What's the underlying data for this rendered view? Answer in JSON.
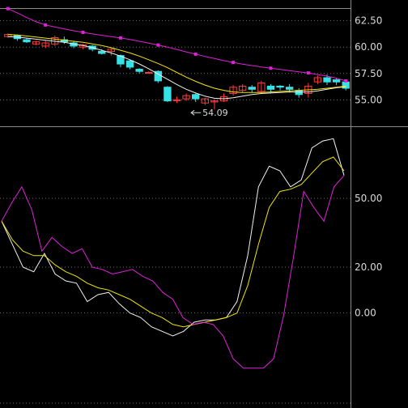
{
  "colors": {
    "background": "#000000",
    "grid": "#6e6e6e",
    "separator": "#8a8a8a",
    "up_candle": "#ff3b3b",
    "down_candle": "#37e2e6",
    "ma_white": "#f2f2f2",
    "ma_yellow": "#f2e600",
    "ma_magenta": "#e020d8",
    "text": "#d8d8d8"
  },
  "chart_data": [
    {
      "type": "candlestick",
      "panel": "price",
      "ylim": [
        52.8,
        63.7
      ],
      "yticks": [
        "62.50",
        "60.00",
        "57.50",
        "55.00"
      ],
      "annotations": [
        {
          "label": "54.09",
          "x": 19,
          "y": 54.09,
          "arrow": "left"
        }
      ],
      "candles": [
        {
          "o": 61.0,
          "c": 61.2,
          "h": 61.3,
          "l": 60.9
        },
        {
          "o": 61.1,
          "c": 60.8,
          "h": 61.2,
          "l": 60.6
        },
        {
          "o": 60.7,
          "c": 60.5,
          "h": 60.9,
          "l": 60.4
        },
        {
          "o": 60.3,
          "c": 60.5,
          "h": 60.6,
          "l": 60.2
        },
        {
          "o": 60.1,
          "c": 60.4,
          "h": 60.6,
          "l": 59.9
        },
        {
          "o": 60.3,
          "c": 60.9,
          "h": 61.1,
          "l": 60.1
        },
        {
          "o": 60.7,
          "c": 60.5,
          "h": 61.0,
          "l": 60.3
        },
        {
          "o": 60.4,
          "c": 60.1,
          "h": 60.6,
          "l": 59.9
        },
        {
          "o": 60.0,
          "c": 60.2,
          "h": 60.3,
          "l": 59.8
        },
        {
          "o": 60.1,
          "c": 59.8,
          "h": 60.2,
          "l": 59.6
        },
        {
          "o": 59.6,
          "c": 59.4,
          "h": 59.8,
          "l": 59.3
        },
        {
          "o": 59.6,
          "c": 59.8,
          "h": 59.9,
          "l": 59.2
        },
        {
          "o": 59.2,
          "c": 58.4,
          "h": 59.3,
          "l": 58.1
        },
        {
          "o": 58.7,
          "c": 58.1,
          "h": 58.8,
          "l": 57.9
        },
        {
          "o": 57.9,
          "c": 57.7,
          "h": 58.0,
          "l": 57.5
        },
        {
          "o": 57.6,
          "c": 57.6,
          "h": 57.7,
          "l": 57.5
        },
        {
          "o": 57.7,
          "c": 56.8,
          "h": 57.8,
          "l": 56.6
        },
        {
          "o": 56.2,
          "c": 54.9,
          "h": 56.3,
          "l": 54.8
        },
        {
          "o": 55.0,
          "c": 55.0,
          "h": 55.3,
          "l": 54.7
        },
        {
          "o": 55.1,
          "c": 55.4,
          "h": 55.6,
          "l": 54.9
        },
        {
          "o": 55.5,
          "c": 55.1,
          "h": 55.6,
          "l": 54.8
        },
        {
          "o": 54.7,
          "c": 55.1,
          "h": 55.2,
          "l": 54.5
        },
        {
          "o": 54.8,
          "c": 54.9,
          "h": 55.0,
          "l": 54.09
        },
        {
          "o": 54.9,
          "c": 55.3,
          "h": 55.6,
          "l": 54.8
        },
        {
          "o": 55.6,
          "c": 56.2,
          "h": 56.4,
          "l": 55.4
        },
        {
          "o": 55.9,
          "c": 56.3,
          "h": 56.5,
          "l": 55.7
        },
        {
          "o": 56.2,
          "c": 56.0,
          "h": 56.4,
          "l": 55.7
        },
        {
          "o": 55.8,
          "c": 56.6,
          "h": 56.8,
          "l": 55.6
        },
        {
          "o": 56.3,
          "c": 56.0,
          "h": 56.5,
          "l": 55.6
        },
        {
          "o": 56.3,
          "c": 56.2,
          "h": 56.4,
          "l": 55.9
        },
        {
          "o": 56.2,
          "c": 56.0,
          "h": 56.5,
          "l": 55.7
        },
        {
          "o": 55.9,
          "c": 55.5,
          "h": 56.1,
          "l": 55.2
        },
        {
          "o": 55.6,
          "c": 56.3,
          "h": 56.6,
          "l": 55.2
        },
        {
          "o": 56.7,
          "c": 57.1,
          "h": 57.3,
          "l": 56.5
        },
        {
          "o": 57.1,
          "c": 56.7,
          "h": 57.4,
          "l": 56.4
        },
        {
          "o": 56.9,
          "c": 56.7,
          "h": 57.1,
          "l": 56.4
        },
        {
          "o": 56.7,
          "c": 56.1,
          "h": 56.8,
          "l": 55.9
        }
      ],
      "series": [
        {
          "color_key": "ma_white",
          "values": [
            61.0,
            60.95,
            60.85,
            60.75,
            60.65,
            60.55,
            60.45,
            60.3,
            60.15,
            59.95,
            59.7,
            59.45,
            59.15,
            58.8,
            58.4,
            57.95,
            57.45,
            56.95,
            56.45,
            56.0,
            55.65,
            55.35,
            55.15,
            55.1,
            55.2,
            55.35,
            55.5,
            55.6,
            55.65,
            55.7,
            55.75,
            55.75,
            55.75,
            55.85,
            56.0,
            56.15,
            56.25
          ]
        },
        {
          "color_key": "ma_yellow",
          "values": [
            61.2,
            61.15,
            61.05,
            60.95,
            60.85,
            60.75,
            60.65,
            60.55,
            60.45,
            60.3,
            60.15,
            59.95,
            59.7,
            59.45,
            59.15,
            58.8,
            58.45,
            58.05,
            57.6,
            57.15,
            56.75,
            56.4,
            56.1,
            55.9,
            55.75,
            55.7,
            55.7,
            55.7,
            55.75,
            55.8,
            55.85,
            55.9,
            55.95,
            56.0,
            56.1,
            56.2,
            56.3
          ]
        },
        {
          "color_key": "ma_magenta",
          "values": [
            63.65,
            63.25,
            62.8,
            62.4,
            62.1,
            61.9,
            61.72,
            61.55,
            61.4,
            61.25,
            61.12,
            61.0,
            60.87,
            60.72,
            60.55,
            60.38,
            60.2,
            60.0,
            59.78,
            59.55,
            59.33,
            59.12,
            58.92,
            58.72,
            58.55,
            58.39,
            58.25,
            58.12,
            58.0,
            57.88,
            57.77,
            57.66,
            57.55,
            57.4,
            57.25,
            57.05,
            56.8
          ]
        }
      ]
    },
    {
      "type": "line",
      "panel": "indicator",
      "ylim": [
        -40,
        80
      ],
      "yticks": [
        "50.00",
        "20.00",
        "0.00"
      ],
      "series": [
        {
          "color_key": "ma_white",
          "values": [
            40,
            30,
            20,
            18,
            26,
            17,
            14,
            13,
            5,
            8,
            9,
            4,
            0,
            -2,
            -6,
            -8,
            -10,
            -8,
            -4,
            -3,
            -3,
            -2,
            5,
            25,
            55,
            64,
            62,
            55,
            58,
            72,
            75,
            76,
            60
          ]
        },
        {
          "color_key": "ma_yellow",
          "values": [
            40,
            32,
            27,
            25,
            25,
            21,
            18,
            16,
            13,
            11,
            10,
            8,
            6,
            3,
            0,
            -2,
            -5,
            -6,
            -5,
            -4,
            -3,
            -2,
            0,
            12,
            30,
            46,
            53,
            54,
            56,
            61,
            66,
            68,
            62
          ]
        },
        {
          "color_key": "ma_magenta",
          "values": [
            40,
            48,
            55,
            45,
            27,
            33,
            29,
            26,
            28,
            20,
            19,
            17,
            18,
            19,
            16,
            14,
            9,
            6,
            -2,
            -5,
            -4,
            -5,
            -10,
            -20,
            -24,
            -24,
            -24,
            -20,
            -1,
            25,
            53,
            46,
            40,
            55,
            60
          ]
        }
      ]
    }
  ]
}
